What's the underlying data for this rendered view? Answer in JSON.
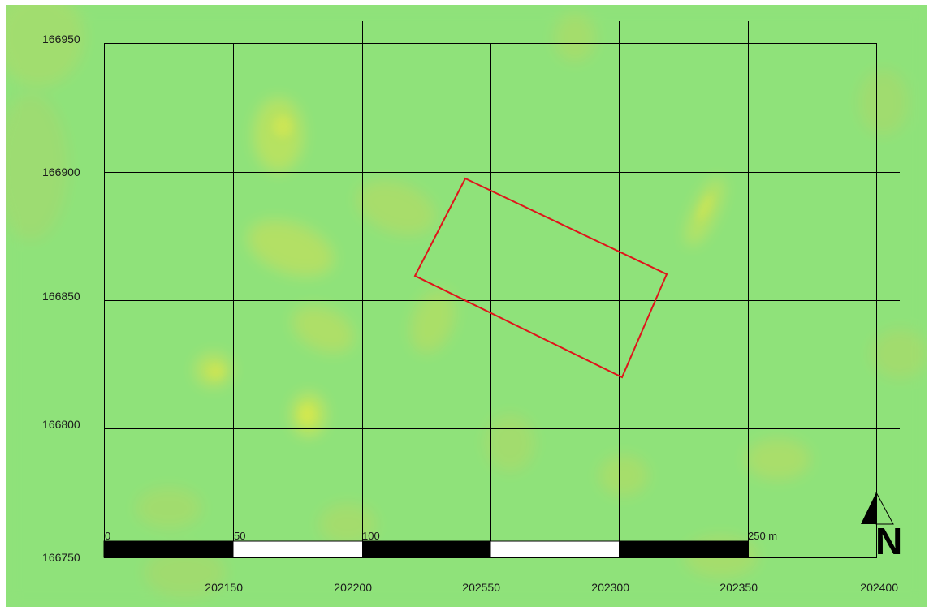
{
  "map": {
    "background_color": "#8fe27a",
    "grid_color": "#000000",
    "site_outline_color": "#e0141a",
    "y_labels": [
      "166950",
      "166900",
      "166850",
      "166800",
      "166750"
    ],
    "x_labels": [
      "202150",
      "202200",
      "202550",
      "202300",
      "202350",
      "202400"
    ],
    "scale_bar": {
      "labels": [
        "0",
        "50",
        "100",
        "250 m"
      ]
    },
    "north_arrow": {
      "letter": "N",
      "icon": "north-arrow-icon"
    }
  }
}
